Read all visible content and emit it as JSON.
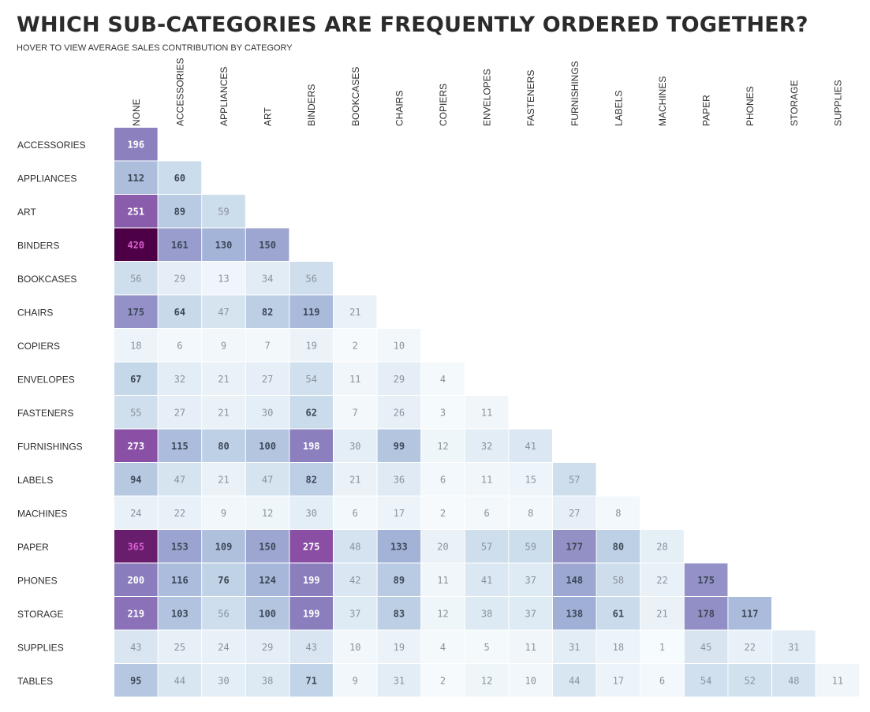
{
  "header": {
    "title": "WHICH SUB-CATEGORIES ARE FREQUENTLY ORDERED TOGETHER?",
    "subtitle": "HOVER TO VIEW AVERAGE SALES CONTRIBUTION BY CATEGORY"
  },
  "chart_data": {
    "type": "heatmap",
    "title": "WHICH SUB-CATEGORIES ARE FREQUENTLY ORDERED TOGETHER?",
    "subtitle": "HOVER TO VIEW AVERAGE SALES CONTRIBUTION BY CATEGORY",
    "columns": [
      "NONE",
      "ACCESSORIES",
      "APPLIANCES",
      "ART",
      "BINDERS",
      "BOOKCASES",
      "CHAIRS",
      "COPIERS",
      "ENVELOPES",
      "FASTENERS",
      "FURNISHINGS",
      "LABELS",
      "MACHINES",
      "PAPER",
      "PHONES",
      "STORAGE",
      "SUPPLIES"
    ],
    "rows": [
      "ACCESSORIES",
      "APPLIANCES",
      "ART",
      "BINDERS",
      "BOOKCASES",
      "CHAIRS",
      "COPIERS",
      "ENVELOPES",
      "FASTENERS",
      "FURNISHINGS",
      "LABELS",
      "MACHINES",
      "PAPER",
      "PHONES",
      "STORAGE",
      "SUPPLIES",
      "TABLES"
    ],
    "values": [
      [
        196
      ],
      [
        112,
        60
      ],
      [
        251,
        89,
        59
      ],
      [
        420,
        161,
        130,
        150
      ],
      [
        56,
        29,
        13,
        34,
        56
      ],
      [
        175,
        64,
        47,
        82,
        119,
        21
      ],
      [
        18,
        6,
        9,
        7,
        19,
        2,
        10
      ],
      [
        67,
        32,
        21,
        27,
        54,
        11,
        29,
        4
      ],
      [
        55,
        27,
        21,
        30,
        62,
        7,
        26,
        3,
        11
      ],
      [
        273,
        115,
        80,
        100,
        198,
        30,
        99,
        12,
        32,
        41
      ],
      [
        94,
        47,
        21,
        47,
        82,
        21,
        36,
        6,
        11,
        15,
        57
      ],
      [
        24,
        22,
        9,
        12,
        30,
        6,
        17,
        2,
        6,
        8,
        27,
        8
      ],
      [
        365,
        153,
        109,
        150,
        275,
        48,
        133,
        20,
        57,
        59,
        177,
        80,
        28
      ],
      [
        200,
        116,
        76,
        124,
        199,
        42,
        89,
        11,
        41,
        37,
        148,
        58,
        22,
        175
      ],
      [
        219,
        103,
        56,
        100,
        199,
        37,
        83,
        12,
        38,
        37,
        138,
        61,
        21,
        178,
        117
      ],
      [
        43,
        25,
        24,
        29,
        43,
        10,
        19,
        4,
        5,
        11,
        31,
        18,
        1,
        45,
        22,
        31
      ],
      [
        95,
        44,
        30,
        38,
        71,
        9,
        31,
        2,
        12,
        10,
        44,
        17,
        6,
        54,
        52,
        48,
        11
      ]
    ],
    "color_scale": {
      "stops": [
        "#f7fbfd",
        "#e4eef6",
        "#c3d6e8",
        "#9faed5",
        "#8b7dbd",
        "#8a3f9c",
        "#4d0045"
      ],
      "domain": [
        0,
        30,
        70,
        140,
        200,
        300,
        420
      ]
    }
  }
}
